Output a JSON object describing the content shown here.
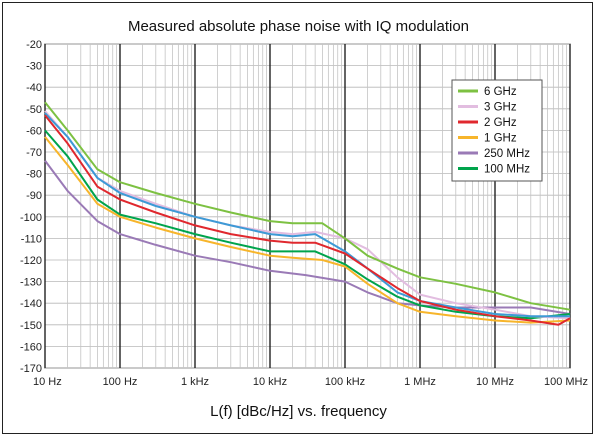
{
  "chart_data": {
    "type": "line",
    "title": "Measured absolute phase noise with IQ modulation",
    "xlabel": "L(f) [dBc/Hz] vs. frequency",
    "ylabel": "",
    "x_scale": "log",
    "xlim": [
      10,
      100000000
    ],
    "ylim": [
      -170,
      -20
    ],
    "x_ticks": [
      {
        "value": 10,
        "label": "10 Hz"
      },
      {
        "value": 100,
        "label": "100 Hz"
      },
      {
        "value": 1000,
        "label": "1 kHz"
      },
      {
        "value": 10000,
        "label": "10 kHz"
      },
      {
        "value": 100000,
        "label": "100 kHz"
      },
      {
        "value": 1000000,
        "label": "1 MHz"
      },
      {
        "value": 10000000,
        "label": "10 MHz"
      },
      {
        "value": 100000000,
        "label": "100 MHz"
      }
    ],
    "y_ticks": [
      -20,
      -30,
      -40,
      -50,
      -60,
      -70,
      -80,
      -90,
      -100,
      -110,
      -120,
      -130,
      -140,
      -150,
      -160,
      -170
    ],
    "grid": true,
    "legend_position": "top-right",
    "series": [
      {
        "name": "6 GHz",
        "color": "#7dc142",
        "points": [
          [
            10,
            -47
          ],
          [
            20,
            -60
          ],
          [
            50,
            -78
          ],
          [
            100,
            -84
          ],
          [
            300,
            -89
          ],
          [
            1000,
            -94
          ],
          [
            3000,
            -98
          ],
          [
            10000,
            -102
          ],
          [
            20000,
            -103
          ],
          [
            30000,
            -103
          ],
          [
            50000,
            -103
          ],
          [
            100000,
            -110
          ],
          [
            200000,
            -118
          ],
          [
            500000,
            -124
          ],
          [
            1000000,
            -128
          ],
          [
            3000000,
            -131
          ],
          [
            10000000,
            -135
          ],
          [
            30000000,
            -140
          ],
          [
            100000000,
            -143
          ]
        ]
      },
      {
        "name": "3 GHz",
        "color": "#e2bde0",
        "points": [
          [
            10,
            -51
          ],
          [
            20,
            -63
          ],
          [
            50,
            -82
          ],
          [
            100,
            -88
          ],
          [
            300,
            -94
          ],
          [
            1000,
            -100
          ],
          [
            3000,
            -104
          ],
          [
            10000,
            -107
          ],
          [
            20000,
            -108
          ],
          [
            40000,
            -107
          ],
          [
            100000,
            -110
          ],
          [
            200000,
            -115
          ],
          [
            500000,
            -128
          ],
          [
            1000000,
            -136
          ],
          [
            3000000,
            -140
          ],
          [
            10000000,
            -143
          ],
          [
            30000000,
            -146
          ],
          [
            100000000,
            -147
          ]
        ]
      },
      {
        "name": "2 GHz",
        "color": "#e0282e",
        "points": [
          [
            10,
            -53
          ],
          [
            20,
            -66
          ],
          [
            50,
            -86
          ],
          [
            100,
            -92
          ],
          [
            300,
            -98
          ],
          [
            1000,
            -104
          ],
          [
            3000,
            -108
          ],
          [
            10000,
            -111
          ],
          [
            20000,
            -112
          ],
          [
            40000,
            -112
          ],
          [
            100000,
            -117
          ],
          [
            200000,
            -124
          ],
          [
            500000,
            -133
          ],
          [
            1000000,
            -139
          ],
          [
            3000000,
            -143
          ],
          [
            10000000,
            -146
          ],
          [
            30000000,
            -148
          ],
          [
            70000000,
            -150
          ],
          [
            100000000,
            -147
          ]
        ]
      },
      {
        "name": "1 GHz",
        "color": "#f7b52b",
        "points": [
          [
            10,
            -63
          ],
          [
            20,
            -76
          ],
          [
            50,
            -94
          ],
          [
            100,
            -100
          ],
          [
            300,
            -105
          ],
          [
            1000,
            -110
          ],
          [
            3000,
            -114
          ],
          [
            10000,
            -118
          ],
          [
            20000,
            -119
          ],
          [
            50000,
            -120
          ],
          [
            100000,
            -123
          ],
          [
            200000,
            -131
          ],
          [
            500000,
            -140
          ],
          [
            1000000,
            -144
          ],
          [
            3000000,
            -146
          ],
          [
            10000000,
            -148
          ],
          [
            30000000,
            -149
          ],
          [
            100000000,
            -148
          ]
        ]
      },
      {
        "name": "250 MHz",
        "color": "#9a7ab6",
        "points": [
          [
            10,
            -74
          ],
          [
            20,
            -88
          ],
          [
            50,
            -102
          ],
          [
            100,
            -108
          ],
          [
            300,
            -113
          ],
          [
            1000,
            -118
          ],
          [
            3000,
            -121
          ],
          [
            10000,
            -125
          ],
          [
            30000,
            -127
          ],
          [
            100000,
            -130
          ],
          [
            200000,
            -135
          ],
          [
            500000,
            -140
          ],
          [
            1000000,
            -141
          ],
          [
            3000000,
            -142
          ],
          [
            10000000,
            -142
          ],
          [
            30000000,
            -142
          ],
          [
            100000000,
            -145
          ]
        ]
      },
      {
        "name": "100 MHz",
        "color": "#00a44c",
        "points": [
          [
            10,
            -60
          ],
          [
            20,
            -72
          ],
          [
            50,
            -92
          ],
          [
            100,
            -99
          ],
          [
            300,
            -103
          ],
          [
            1000,
            -108
          ],
          [
            3000,
            -112
          ],
          [
            10000,
            -116
          ],
          [
            20000,
            -116
          ],
          [
            40000,
            -116
          ],
          [
            100000,
            -122
          ],
          [
            200000,
            -129
          ],
          [
            500000,
            -137
          ],
          [
            1000000,
            -141
          ],
          [
            3000000,
            -144
          ],
          [
            10000000,
            -146
          ],
          [
            30000000,
            -147
          ],
          [
            100000000,
            -145
          ]
        ]
      },
      {
        "name": "",
        "color": "#3d9ad6",
        "points": [
          [
            10,
            -52
          ],
          [
            20,
            -63
          ],
          [
            50,
            -82
          ],
          [
            100,
            -89
          ],
          [
            300,
            -95
          ],
          [
            1000,
            -100
          ],
          [
            3000,
            -104
          ],
          [
            10000,
            -108
          ],
          [
            20000,
            -109
          ],
          [
            40000,
            -108
          ],
          [
            100000,
            -116
          ],
          [
            200000,
            -124
          ],
          [
            500000,
            -135
          ],
          [
            1000000,
            -139
          ],
          [
            3000000,
            -142
          ],
          [
            10000000,
            -145
          ],
          [
            30000000,
            -146
          ],
          [
            100000000,
            -146
          ]
        ]
      }
    ]
  }
}
